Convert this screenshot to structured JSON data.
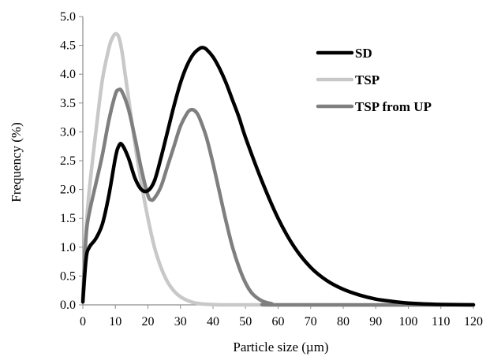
{
  "chart_data": {
    "type": "line",
    "xlabel": "Particle size (µm)",
    "ylabel": "Frequency (%)",
    "xlim": [
      0,
      120
    ],
    "ylim": [
      0,
      5.0
    ],
    "x_ticks": [
      "0",
      "10",
      "20",
      "30",
      "40",
      "50",
      "60",
      "70",
      "80",
      "90",
      "100",
      "110",
      "120"
    ],
    "y_ticks": [
      "0.0",
      "0.5",
      "1.0",
      "1.5",
      "2.0",
      "2.5",
      "3.0",
      "3.5",
      "4.0",
      "4.5",
      "5.0"
    ],
    "grid": false,
    "legend_position": "top-right",
    "series": [
      {
        "name": "SD",
        "color": "#000000",
        "x": [
          0,
          1,
          2,
          4,
          6,
          8,
          10,
          11,
          12,
          14,
          16,
          18,
          20,
          22,
          24,
          26,
          28,
          30,
          32,
          34,
          36,
          37,
          38,
          40,
          42,
          44,
          46,
          48,
          50,
          55,
          60,
          65,
          70,
          75,
          80,
          85,
          90,
          95,
          100,
          105,
          110,
          115,
          120
        ],
        "y": [
          0.05,
          0.8,
          1.0,
          1.15,
          1.4,
          1.9,
          2.55,
          2.75,
          2.78,
          2.55,
          2.2,
          2.0,
          1.98,
          2.15,
          2.55,
          3.0,
          3.45,
          3.85,
          4.15,
          4.35,
          4.45,
          4.46,
          4.43,
          4.3,
          4.1,
          3.85,
          3.55,
          3.25,
          2.9,
          2.15,
          1.5,
          1.0,
          0.65,
          0.42,
          0.27,
          0.17,
          0.1,
          0.06,
          0.03,
          0.015,
          0.007,
          0.003,
          0.0
        ]
      },
      {
        "name": "TSP",
        "color": "#c8c8c8",
        "x": [
          0,
          1,
          2,
          4,
          6,
          8,
          9,
          10,
          11,
          12,
          13,
          14,
          16,
          18,
          20,
          22,
          24,
          26,
          28,
          30,
          32,
          34,
          36,
          38,
          40,
          42,
          45,
          50,
          60,
          120
        ],
        "y": [
          0.1,
          1.3,
          2.0,
          3.0,
          3.9,
          4.45,
          4.62,
          4.7,
          4.65,
          4.4,
          4.0,
          3.6,
          2.8,
          2.1,
          1.5,
          1.0,
          0.65,
          0.4,
          0.24,
          0.14,
          0.08,
          0.04,
          0.02,
          0.01,
          0.005,
          0.0,
          0.0,
          0.0,
          0.0,
          0.0
        ]
      },
      {
        "name": "TSP from UP",
        "color": "#7f7f7f",
        "x": [
          0,
          1,
          2,
          4,
          6,
          8,
          10,
          11,
          12,
          14,
          16,
          18,
          20,
          21,
          22,
          24,
          26,
          28,
          30,
          32,
          33,
          34,
          35,
          36,
          38,
          40,
          42,
          44,
          46,
          48,
          50,
          52,
          55,
          58,
          60,
          120
        ],
        "y": [
          0.1,
          1.2,
          1.6,
          2.1,
          2.6,
          3.2,
          3.65,
          3.73,
          3.7,
          3.4,
          2.9,
          2.35,
          1.9,
          1.82,
          1.85,
          2.05,
          2.4,
          2.75,
          3.1,
          3.32,
          3.38,
          3.38,
          3.33,
          3.22,
          2.9,
          2.45,
          1.95,
          1.45,
          1.0,
          0.65,
          0.38,
          0.2,
          0.07,
          0.02,
          0.0,
          0.0
        ]
      }
    ]
  }
}
